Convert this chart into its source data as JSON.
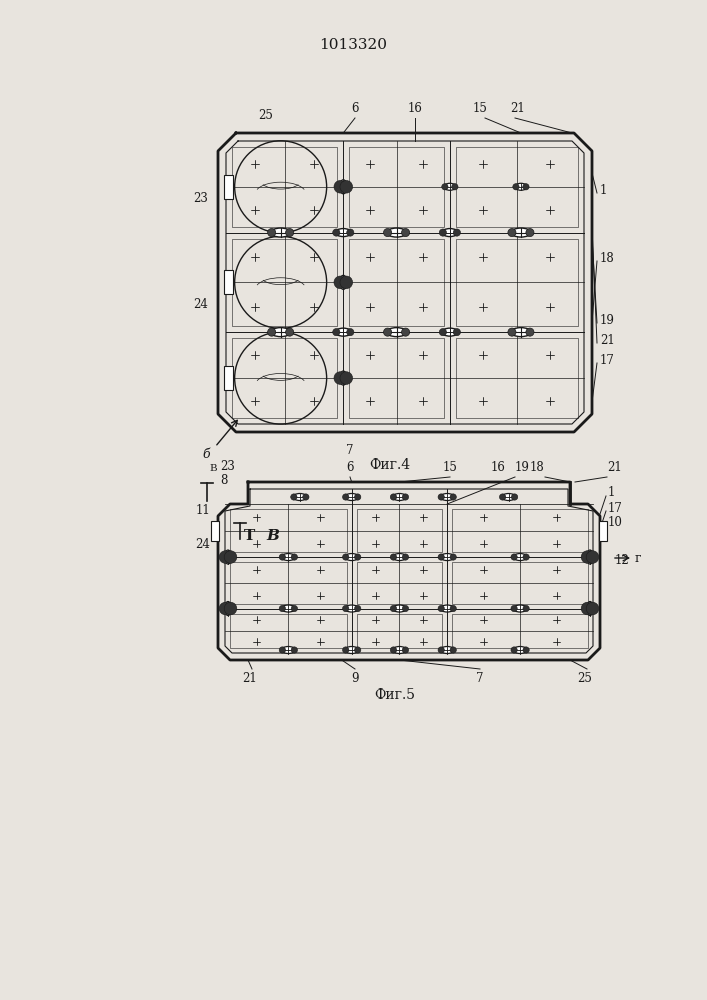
{
  "title": "1013320",
  "title_fontsize": 11,
  "fig4_caption": "Фиг.4",
  "fig5_caption": "Фиг.5",
  "bg_color": "#e8e4de",
  "line_color": "#1a1a1a",
  "white": "#ffffff"
}
